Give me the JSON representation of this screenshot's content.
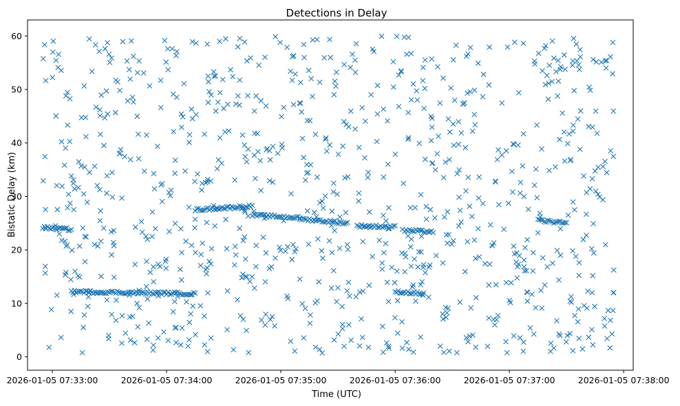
{
  "chart_data": {
    "type": "scatter",
    "title": "Detections in Delay",
    "xlabel": "Time (UTC)",
    "ylabel": "Bistatic Delay (km)",
    "marker": "x",
    "color": "#1f77b4",
    "xlim": [
      "2026-01-05 07:32:47",
      "2026-01-05 07:38:05"
    ],
    "ylim": [
      -2.5,
      63
    ],
    "x_ticks": [
      "2026-01-05 07:33:00",
      "2026-01-05 07:34:00",
      "2026-01-05 07:35:00",
      "2026-01-05 07:36:00",
      "2026-01-05 07:37:00",
      "2026-01-05 07:38:00"
    ],
    "y_ticks": [
      0,
      10,
      20,
      30,
      40,
      50,
      60
    ],
    "grid": false,
    "x_range": [
      "2026-01-05 07:32:55",
      "2026-01-05 07:37:55"
    ],
    "noise_y_range": [
      0.5,
      60
    ],
    "noise_count": 950,
    "tracks": [
      {
        "x": [
          "2026-01-05 07:32:55",
          "2026-01-05 07:33:10"
        ],
        "y": [
          24.2,
          23.8
        ]
      },
      {
        "x": [
          "2026-01-05 07:33:10",
          "2026-01-05 07:34:15"
        ],
        "y": [
          12.2,
          11.8
        ]
      },
      {
        "x": [
          "2026-01-05 07:34:15",
          "2026-01-05 07:34:45"
        ],
        "y": [
          27.5,
          28.2
        ]
      },
      {
        "x": [
          "2026-01-05 07:34:45",
          "2026-01-05 07:35:10"
        ],
        "y": [
          26.5,
          26.0
        ]
      },
      {
        "x": [
          "2026-01-05 07:35:10",
          "2026-01-05 07:35:35"
        ],
        "y": [
          25.8,
          25.0
        ]
      },
      {
        "x": [
          "2026-01-05 07:35:40",
          "2026-01-05 07:36:00"
        ],
        "y": [
          24.5,
          24.3
        ]
      },
      {
        "x": [
          "2026-01-05 07:36:00",
          "2026-01-05 07:36:15"
        ],
        "y": [
          12.2,
          11.8
        ]
      },
      {
        "x": [
          "2026-01-05 07:36:05",
          "2026-01-05 07:36:20"
        ],
        "y": [
          23.6,
          23.4
        ]
      },
      {
        "x": [
          "2026-01-05 07:37:15",
          "2026-01-05 07:37:30"
        ],
        "y": [
          25.5,
          25.0
        ]
      }
    ]
  }
}
